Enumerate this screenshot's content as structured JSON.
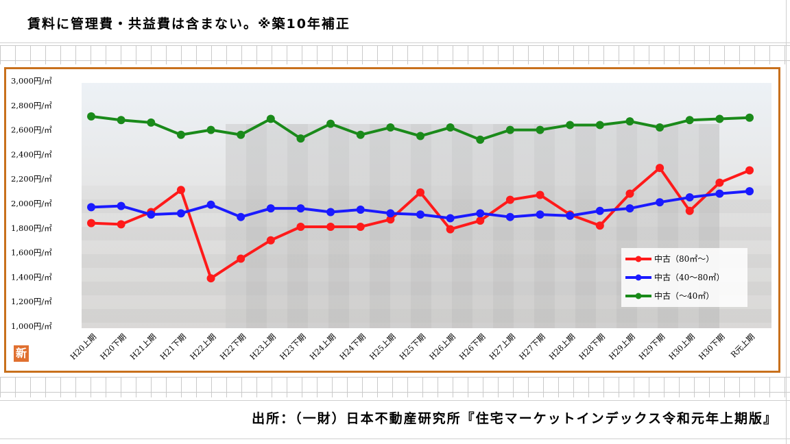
{
  "header": {
    "note": "賃料に管理費・共益費は含まない。※築10年補正"
  },
  "footer": {
    "source": "出所：（一財）日本不動産研究所『住宅マーケットインデックス令和元年上期版』"
  },
  "badge": {
    "label": "新"
  },
  "colors": {
    "frame": "#c8701c",
    "red": "#ff1a1a",
    "blue": "#1a1aff",
    "green": "#1a8a1a"
  },
  "chart_data": {
    "type": "line",
    "title": "",
    "xlabel": "",
    "ylabel": "",
    "ylim": [
      1000,
      3000
    ],
    "yticks": [
      {
        "value": 3000,
        "label": "3,000円/㎡"
      },
      {
        "value": 2800,
        "label": "2,800円/㎡"
      },
      {
        "value": 2600,
        "label": "2,600円/㎡"
      },
      {
        "value": 2400,
        "label": "2,400円/㎡"
      },
      {
        "value": 2200,
        "label": "2,200円/㎡"
      },
      {
        "value": 2000,
        "label": "2,000円/㎡"
      },
      {
        "value": 1800,
        "label": "1,800円/㎡"
      },
      {
        "value": 1600,
        "label": "1,600円/㎡"
      },
      {
        "value": 1400,
        "label": "1,400円/㎡"
      },
      {
        "value": 1200,
        "label": "1,200円/㎡"
      },
      {
        "value": 1000,
        "label": "1,000円/㎡"
      }
    ],
    "categories": [
      "H20上期",
      "H20下期",
      "H21上期",
      "H21下期",
      "H22上期",
      "H22下期",
      "H23上期",
      "H23下期",
      "H24上期",
      "H24下期",
      "H25上期",
      "H25下期",
      "H26上期",
      "H26下期",
      "H27上期",
      "H27下期",
      "H28上期",
      "H28下期",
      "H29上期",
      "H29下期",
      "H30上期",
      "H30下期",
      "R元上期"
    ],
    "legend_position": "bottom-right",
    "grid": false,
    "series": [
      {
        "name": "中古（80㎡～）",
        "color": "red",
        "values": [
          1840,
          1830,
          1930,
          2110,
          1390,
          1550,
          1700,
          1810,
          1810,
          1810,
          1870,
          2090,
          1790,
          1860,
          2030,
          2070,
          1910,
          1820,
          2080,
          2290,
          1940,
          2170,
          2270
        ]
      },
      {
        "name": "中古（40～80㎡）",
        "color": "blue",
        "values": [
          1970,
          1980,
          1910,
          1920,
          1990,
          1890,
          1960,
          1960,
          1930,
          1950,
          1920,
          1910,
          1880,
          1920,
          1890,
          1910,
          1900,
          1940,
          1960,
          2010,
          2050,
          2080,
          2100
        ]
      },
      {
        "name": "中古（～40㎡）",
        "color": "green",
        "values": [
          2710,
          2680,
          2660,
          2560,
          2600,
          2560,
          2690,
          2530,
          2650,
          2560,
          2620,
          2550,
          2620,
          2520,
          2600,
          2600,
          2640,
          2640,
          2670,
          2620,
          2680,
          2690,
          2700
        ]
      }
    ]
  }
}
